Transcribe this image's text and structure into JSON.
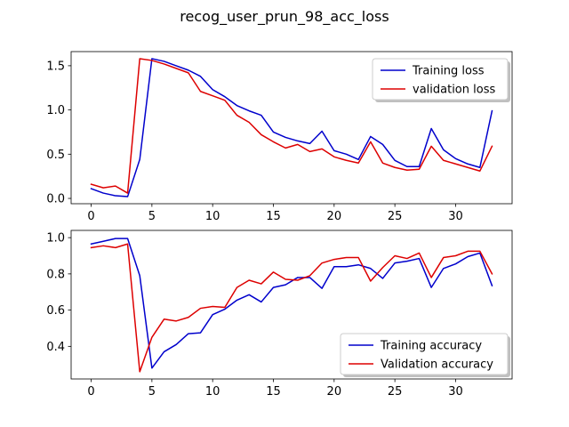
{
  "figure": {
    "title": "recog_user_prun_98_acc_loss"
  },
  "chart_data": [
    {
      "type": "line",
      "title": "",
      "xlabel": "",
      "ylabel": "",
      "xlim": [
        -1.65,
        34.65
      ],
      "ylim": [
        -0.06,
        1.66
      ],
      "x_ticks": [
        0,
        5,
        10,
        15,
        20,
        25,
        30
      ],
      "y_ticks": [
        0.0,
        0.5,
        1.0,
        1.5
      ],
      "y_tick_labels": [
        "0.0",
        "0.5",
        "1.0",
        "1.5"
      ],
      "grid": false,
      "legend_position": "upper right",
      "x": [
        0,
        1,
        2,
        3,
        4,
        5,
        6,
        7,
        8,
        9,
        10,
        11,
        12,
        13,
        14,
        15,
        16,
        17,
        18,
        19,
        20,
        21,
        22,
        23,
        24,
        25,
        26,
        27,
        28,
        29,
        30,
        31,
        32,
        33
      ],
      "series": [
        {
          "name": "Training loss",
          "color": "#0000cc",
          "values": [
            0.11,
            0.06,
            0.03,
            0.02,
            0.44,
            1.58,
            1.55,
            1.5,
            1.45,
            1.38,
            1.23,
            1.15,
            1.05,
            0.99,
            0.94,
            0.75,
            0.69,
            0.65,
            0.62,
            0.76,
            0.54,
            0.5,
            0.44,
            0.7,
            0.61,
            0.43,
            0.36,
            0.36,
            0.79,
            0.55,
            0.45,
            0.39,
            0.35,
            0.99
          ]
        },
        {
          "name": "validation loss",
          "color": "#dd0000",
          "values": [
            0.16,
            0.12,
            0.14,
            0.06,
            1.58,
            1.56,
            1.52,
            1.47,
            1.42,
            1.21,
            1.16,
            1.11,
            0.94,
            0.86,
            0.72,
            0.64,
            0.57,
            0.61,
            0.53,
            0.56,
            0.47,
            0.43,
            0.4,
            0.64,
            0.4,
            0.35,
            0.32,
            0.33,
            0.59,
            0.43,
            0.39,
            0.35,
            0.31,
            0.59
          ]
        }
      ]
    },
    {
      "type": "line",
      "title": "",
      "xlabel": "",
      "ylabel": "",
      "xlim": [
        -1.65,
        34.65
      ],
      "ylim": [
        0.22,
        1.04
      ],
      "x_ticks": [
        0,
        5,
        10,
        15,
        20,
        25,
        30
      ],
      "y_ticks": [
        0.4,
        0.6,
        0.8,
        1.0
      ],
      "y_tick_labels": [
        "0.4",
        "0.6",
        "0.8",
        "1.0"
      ],
      "grid": false,
      "legend_position": "lower right",
      "x": [
        0,
        1,
        2,
        3,
        4,
        5,
        6,
        7,
        8,
        9,
        10,
        11,
        12,
        13,
        14,
        15,
        16,
        17,
        18,
        19,
        20,
        21,
        22,
        23,
        24,
        25,
        26,
        27,
        28,
        29,
        30,
        31,
        32,
        33
      ],
      "series": [
        {
          "name": "Training accuracy",
          "color": "#0000cc",
          "values": [
            0.965,
            0.98,
            0.995,
            0.995,
            0.79,
            0.28,
            0.37,
            0.41,
            0.47,
            0.475,
            0.575,
            0.605,
            0.655,
            0.685,
            0.645,
            0.725,
            0.74,
            0.78,
            0.78,
            0.72,
            0.84,
            0.84,
            0.85,
            0.83,
            0.775,
            0.86,
            0.87,
            0.885,
            0.725,
            0.83,
            0.855,
            0.895,
            0.915,
            0.735
          ]
        },
        {
          "name": "Validation accuracy",
          "color": "#dd0000",
          "values": [
            0.945,
            0.955,
            0.945,
            0.965,
            0.26,
            0.45,
            0.55,
            0.54,
            0.56,
            0.61,
            0.62,
            0.615,
            0.725,
            0.765,
            0.745,
            0.81,
            0.77,
            0.765,
            0.79,
            0.86,
            0.88,
            0.89,
            0.89,
            0.76,
            0.835,
            0.9,
            0.885,
            0.915,
            0.78,
            0.89,
            0.9,
            0.925,
            0.925,
            0.8
          ]
        }
      ]
    }
  ]
}
